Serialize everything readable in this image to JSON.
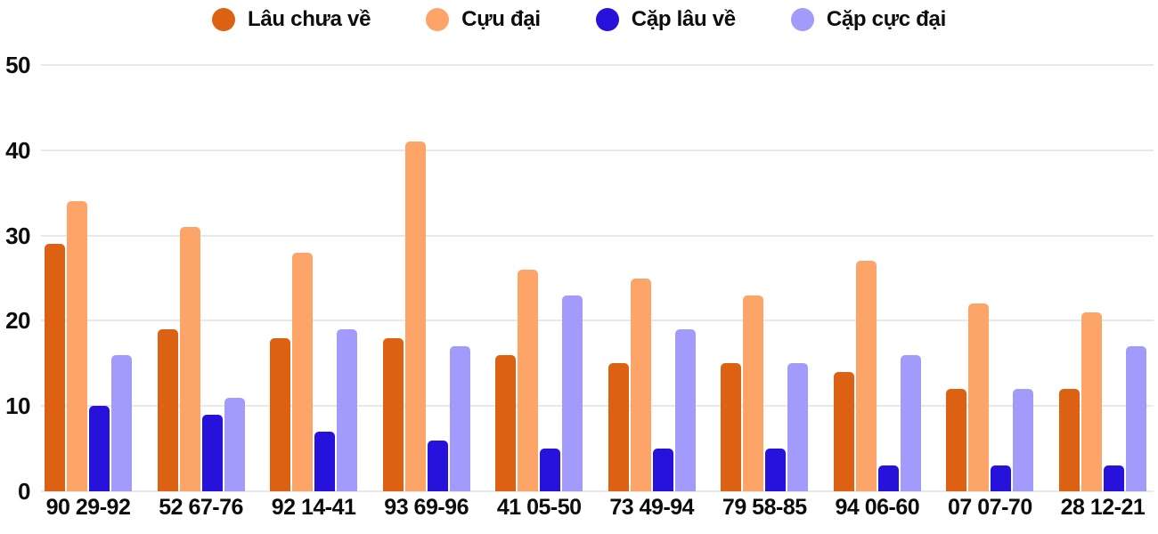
{
  "colors": {
    "background": "#ffffff",
    "grid": "#e8e8e8",
    "text": "#0d0d0d"
  },
  "chart_data": {
    "type": "bar",
    "title": "",
    "xlabel": "",
    "ylabel": "",
    "ylim": [
      0,
      50
    ],
    "yticks": [
      50,
      40,
      30,
      20,
      10,
      0
    ],
    "grid": "horizontal",
    "legend_position": "top",
    "categories": [
      "90 29-92",
      "52 67-76",
      "92 14-41",
      "93 69-96",
      "41 05-50",
      "73 49-94",
      "79 58-85",
      "94 06-60",
      "07 07-70",
      "28 12-21"
    ],
    "series": [
      {
        "name": "Lâu chưa về",
        "color": "#dd6113",
        "values": [
          29,
          19,
          18,
          18,
          16,
          15,
          15,
          14,
          12,
          12
        ]
      },
      {
        "name": "Cựu đại",
        "color": "#fda469",
        "values": [
          34,
          31,
          28,
          41,
          26,
          25,
          23,
          27,
          22,
          21
        ]
      },
      {
        "name": "Cặp lâu về",
        "color": "#2712dc",
        "values": [
          10,
          9,
          7,
          6,
          5,
          5,
          5,
          3,
          3,
          3
        ]
      },
      {
        "name": "Cặp cực đại",
        "color": "#a29bfb",
        "values": [
          16,
          11,
          19,
          17,
          23,
          19,
          15,
          16,
          12,
          17
        ]
      }
    ]
  }
}
